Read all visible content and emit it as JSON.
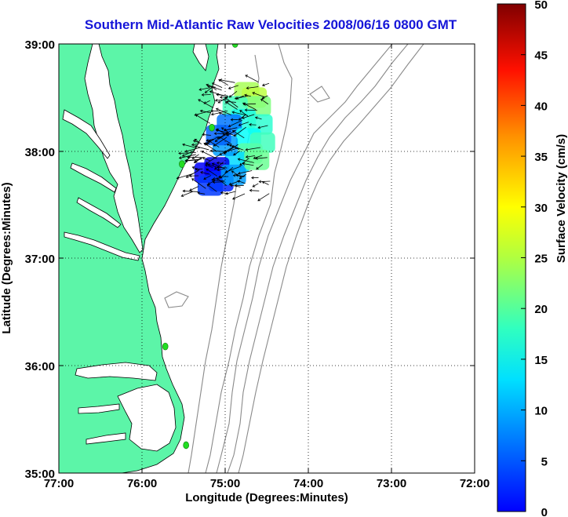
{
  "title": "Southern Mid-Atlantic Raw Velocities 2008/06/16 0800 GMT",
  "x_axis": {
    "label": "Longitude (Degrees:Minutes)",
    "ticks": [
      "77:00",
      "76:00",
      "75:00",
      "74:00",
      "73:00",
      "72:00"
    ],
    "range": [
      -77,
      -72
    ]
  },
  "y_axis": {
    "label": "Latitude (Degrees:Minutes)",
    "ticks": [
      "39:00",
      "38:00",
      "37:00",
      "36:00",
      "35:00"
    ],
    "range": [
      35,
      39
    ]
  },
  "colorbar": {
    "label": "Surface Velocity (cm/s)",
    "ticks": [
      "50",
      "45",
      "40",
      "35",
      "30",
      "25",
      "20",
      "15",
      "10",
      "5",
      "0"
    ],
    "min": 0,
    "max": 50,
    "colormap": "jet"
  },
  "grid": "dotted",
  "colors": {
    "title": "#1515d8",
    "land": "#5cf5a8",
    "ocean": "#ffffff",
    "bathymetry": "#8a8a8a",
    "station": "#22dd22",
    "vector": "#000000"
  },
  "stations": [
    {
      "lon": -74.88,
      "lat": 39.0
    },
    {
      "lon": -75.16,
      "lat": 38.22
    },
    {
      "lon": -75.52,
      "lat": 37.88
    },
    {
      "lon": -75.72,
      "lat": 36.18
    },
    {
      "lon": -75.47,
      "lat": 35.26
    }
  ],
  "velocity_patches": [
    {
      "lon": -74.74,
      "lat": 38.55,
      "speed": 27
    },
    {
      "lon": -74.65,
      "lat": 38.5,
      "speed": 28
    },
    {
      "lon": -74.6,
      "lat": 38.42,
      "speed": 25
    },
    {
      "lon": -74.88,
      "lat": 38.42,
      "speed": 22
    },
    {
      "lon": -74.78,
      "lat": 38.3,
      "speed": 20
    },
    {
      "lon": -74.58,
      "lat": 38.25,
      "speed": 21
    },
    {
      "lon": -74.95,
      "lat": 38.25,
      "speed": 12
    },
    {
      "lon": -74.72,
      "lat": 38.12,
      "speed": 19
    },
    {
      "lon": -74.55,
      "lat": 38.08,
      "speed": 22
    },
    {
      "lon": -74.7,
      "lat": 37.98,
      "speed": 23
    },
    {
      "lon": -74.85,
      "lat": 37.9,
      "speed": 17
    },
    {
      "lon": -75.0,
      "lat": 38.05,
      "speed": 14
    },
    {
      "lon": -75.1,
      "lat": 37.85,
      "speed": 5
    },
    {
      "lon": -75.22,
      "lat": 37.8,
      "speed": 6
    },
    {
      "lon": -75.05,
      "lat": 37.72,
      "speed": 8
    },
    {
      "lon": -74.9,
      "lat": 37.78,
      "speed": 14
    },
    {
      "lon": -75.18,
      "lat": 37.68,
      "speed": 9
    },
    {
      "lon": -75.08,
      "lat": 38.15,
      "speed": 11
    },
    {
      "lon": -74.62,
      "lat": 37.92,
      "speed": 24
    }
  ]
}
